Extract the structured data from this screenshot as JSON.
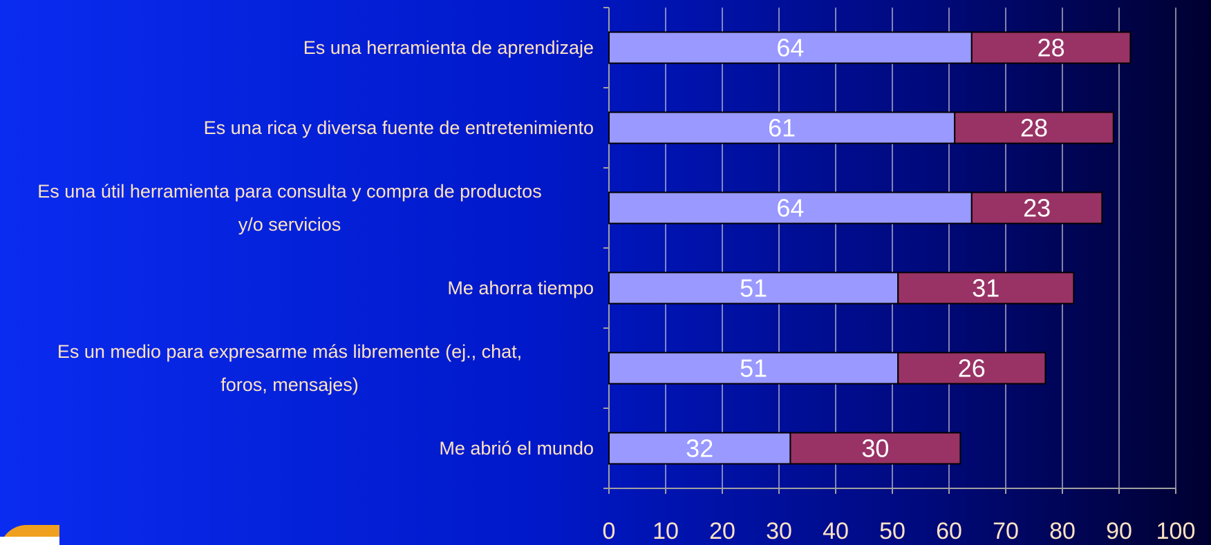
{
  "chart_data": {
    "type": "stacked_barh",
    "categories": [
      "Es una herramienta de aprendizaje",
      "Es una rica y diversa fuente de entretenimiento",
      "Es una útil herramienta para consulta y compra de productos\ny/o servicios",
      "Me ahorra tiempo",
      "Es un medio para expresarme más libremente (ej., chat,\nforos, mensajes)",
      "Me abrió el mundo"
    ],
    "series": [
      {
        "color": "#9999ff",
        "values": [
          64,
          61,
          64,
          51,
          51,
          32
        ]
      },
      {
        "color": "#993366",
        "values": [
          28,
          28,
          23,
          31,
          26,
          30
        ]
      }
    ],
    "xlim": [
      0,
      100
    ],
    "xticks": [
      0,
      10,
      20,
      30,
      40,
      50,
      60,
      70,
      80,
      90,
      100
    ],
    "grid": true
  }
}
